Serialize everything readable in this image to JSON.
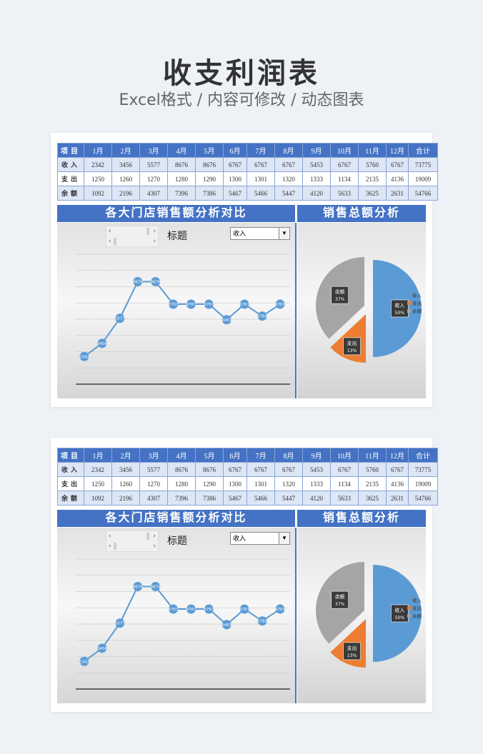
{
  "page": {
    "title": "收支利润表",
    "subtitle": "Excel格式 / 内容可修改 / 动态图表"
  },
  "table": {
    "headers": [
      "项目",
      "1月",
      "2月",
      "3月",
      "4月",
      "5月",
      "6月",
      "7月",
      "8月",
      "9月",
      "10月",
      "11月",
      "12月",
      "合计"
    ],
    "rows": [
      {
        "label": "收入",
        "values": [
          "2342",
          "3456",
          "5577",
          "8676",
          "8676",
          "6767",
          "6767",
          "6767",
          "5453",
          "6767",
          "5760",
          "6767",
          "73775"
        ]
      },
      {
        "label": "支出",
        "values": [
          "1250",
          "1260",
          "1270",
          "1280",
          "1290",
          "1300",
          "1301",
          "1320",
          "1333",
          "1134",
          "2135",
          "4136",
          "19009"
        ]
      },
      {
        "label": "余额",
        "values": [
          "1092",
          "2196",
          "4307",
          "7396",
          "7386",
          "5467",
          "5466",
          "5447",
          "4120",
          "5633",
          "3625",
          "2631",
          "54766"
        ]
      }
    ]
  },
  "left_panel": {
    "title": "各大门店销售额分析对比",
    "chart_label": "标题",
    "dropdown_value": "收入",
    "scroll_prev": "‹",
    "scroll_next": "›",
    "dropdown_arrow": "▼"
  },
  "right_panel": {
    "title": "销售总额分析"
  },
  "chart_data": [
    {
      "type": "line",
      "title": "标题",
      "categories": [
        "1月",
        "2月",
        "3月",
        "4月",
        "5月",
        "6月",
        "7月",
        "8月",
        "9月",
        "10月",
        "11月",
        "12月"
      ],
      "series": [
        {
          "name": "收入",
          "values": [
            2342,
            3456,
            5577,
            8676,
            8676,
            6767,
            6767,
            6767,
            5453,
            6767,
            5760,
            6767
          ],
          "labels": [
            "2342",
            "3456",
            "5577",
            "8676",
            "8676",
            "6767",
            "6767",
            "6767",
            "5453",
            "6767",
            "5760",
            "6767"
          ]
        }
      ],
      "ylim": [
        0,
        11000
      ],
      "grid": true,
      "color": "#5b9bd5"
    },
    {
      "type": "pie",
      "title": "销售总额分析",
      "slices": [
        {
          "name": "收入",
          "percent": 50,
          "label": "50%",
          "color": "#5b9bd5"
        },
        {
          "name": "支出",
          "percent": 13,
          "label": "13%",
          "color": "#ed7d31"
        },
        {
          "name": "余额",
          "percent": 37,
          "label": "37%",
          "color": "#a5a5a5"
        }
      ],
      "legend": "right"
    }
  ]
}
